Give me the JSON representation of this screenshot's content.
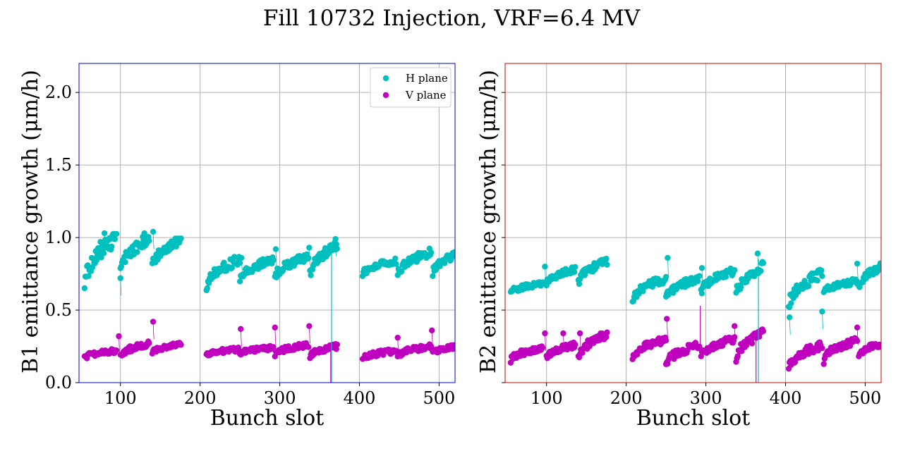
{
  "figure": {
    "title": "Fill 10732 Injection, VRF=6.4 MV"
  },
  "colors": {
    "h_plane": "#00bfbf",
    "v_plane": "#bf00bf",
    "b1_frame": "#0000cc",
    "b2_frame": "#cc0000",
    "grid": "#b0b0b0"
  },
  "chart_data": [
    {
      "type": "scatter",
      "panel": "b1",
      "xlabel": "Bunch slot",
      "ylabel": "B1 emittance growth (μm/h)",
      "xlim": [
        48,
        520
      ],
      "ylim": [
        0.0,
        2.2
      ],
      "xticks": [
        "100",
        "200",
        "300",
        "400",
        "500"
      ],
      "yticks": [
        "0.0",
        "0.5",
        "1.0",
        "1.5",
        "2.0"
      ],
      "grid": true,
      "legend": {
        "placement": "top-right",
        "entries": [
          "H plane",
          "V plane"
        ]
      },
      "series": [
        {
          "name": "H plane",
          "color": "#00bfbf",
          "groups": [
            {
              "x_start": 55,
              "x_end": 95,
              "y_start": 0.66,
              "y_end": 1.0
            },
            {
              "x_start": 100,
              "x_end": 136,
              "y_start": 0.75,
              "y_end": 1.0
            },
            {
              "x_start": 140,
              "x_end": 176,
              "y_start": 0.8,
              "y_end": 0.98
            },
            {
              "x_start": 208,
              "x_end": 250,
              "y_start": 0.65,
              "y_end": 0.85
            },
            {
              "x_start": 250,
              "x_end": 292,
              "y_start": 0.7,
              "y_end": 0.85
            },
            {
              "x_start": 294,
              "x_end": 336,
              "y_start": 0.72,
              "y_end": 0.87
            },
            {
              "x_start": 338,
              "x_end": 372,
              "y_start": 0.74,
              "y_end": 0.95
            },
            {
              "x_start": 404,
              "x_end": 446,
              "y_start": 0.74,
              "y_end": 0.84
            },
            {
              "x_start": 448,
              "x_end": 490,
              "y_start": 0.74,
              "y_end": 0.9
            },
            {
              "x_start": 492,
              "x_end": 520,
              "y_start": 0.75,
              "y_end": 0.88
            }
          ],
          "outliers": [
            {
              "x": 75,
              "y": 0.97
            },
            {
              "x": 80,
              "y": 1.03
            },
            {
              "x": 100,
              "y": 0.72
            },
            {
              "x": 130,
              "y": 1.03
            },
            {
              "x": 141,
              "y": 1.04
            },
            {
              "x": 252,
              "y": 0.86
            },
            {
              "x": 295,
              "y": 0.92
            },
            {
              "x": 337,
              "y": 0.93
            },
            {
              "x": 370,
              "y": 0.99
            }
          ]
        },
        {
          "name": "V plane",
          "color": "#bf00bf",
          "groups": [
            {
              "x_start": 55,
              "x_end": 95,
              "y_start": 0.17,
              "y_end": 0.22
            },
            {
              "x_start": 100,
              "x_end": 136,
              "y_start": 0.18,
              "y_end": 0.27
            },
            {
              "x_start": 140,
              "x_end": 176,
              "y_start": 0.2,
              "y_end": 0.27
            },
            {
              "x_start": 208,
              "x_end": 250,
              "y_start": 0.19,
              "y_end": 0.23
            },
            {
              "x_start": 250,
              "x_end": 292,
              "y_start": 0.2,
              "y_end": 0.24
            },
            {
              "x_start": 294,
              "x_end": 336,
              "y_start": 0.19,
              "y_end": 0.26
            },
            {
              "x_start": 338,
              "x_end": 372,
              "y_start": 0.18,
              "y_end": 0.25
            },
            {
              "x_start": 404,
              "x_end": 446,
              "y_start": 0.16,
              "y_end": 0.22
            },
            {
              "x_start": 448,
              "x_end": 490,
              "y_start": 0.18,
              "y_end": 0.25
            },
            {
              "x_start": 492,
              "x_end": 520,
              "y_start": 0.2,
              "y_end": 0.25
            }
          ],
          "outliers": [
            {
              "x": 98,
              "y": 0.32
            },
            {
              "x": 141,
              "y": 0.42
            },
            {
              "x": 251,
              "y": 0.37
            },
            {
              "x": 294,
              "y": 0.38
            },
            {
              "x": 337,
              "y": 0.39
            },
            {
              "x": 448,
              "y": 0.31
            },
            {
              "x": 491,
              "y": 0.36
            }
          ]
        }
      ],
      "drop_lines": [
        {
          "x": 364,
          "from": 0.25,
          "to": 0.0,
          "color": "#bf00bf"
        },
        {
          "x": 365,
          "from": 0.95,
          "to": 0.0,
          "color": "#00bfbf"
        }
      ]
    },
    {
      "type": "scatter",
      "panel": "b2",
      "xlabel": "Bunch slot",
      "ylabel": "B2 emittance growth (μm/h)",
      "xlim": [
        48,
        520
      ],
      "ylim": [
        0.0,
        2.2
      ],
      "xticks": [
        "100",
        "200",
        "300",
        "400",
        "500"
      ],
      "grid": true,
      "series": [
        {
          "name": "H plane",
          "color": "#00bfbf",
          "groups": [
            {
              "x_start": 55,
              "x_end": 95,
              "y_start": 0.62,
              "y_end": 0.68
            },
            {
              "x_start": 100,
              "x_end": 136,
              "y_start": 0.68,
              "y_end": 0.78
            },
            {
              "x_start": 140,
              "x_end": 176,
              "y_start": 0.68,
              "y_end": 0.84
            },
            {
              "x_start": 208,
              "x_end": 250,
              "y_start": 0.56,
              "y_end": 0.72
            },
            {
              "x_start": 250,
              "x_end": 292,
              "y_start": 0.58,
              "y_end": 0.72
            },
            {
              "x_start": 294,
              "x_end": 336,
              "y_start": 0.62,
              "y_end": 0.77
            },
            {
              "x_start": 338,
              "x_end": 372,
              "y_start": 0.6,
              "y_end": 0.8
            },
            {
              "x_start": 404,
              "x_end": 446,
              "y_start": 0.52,
              "y_end": 0.76
            },
            {
              "x_start": 448,
              "x_end": 490,
              "y_start": 0.62,
              "y_end": 0.7
            },
            {
              "x_start": 492,
              "x_end": 520,
              "y_start": 0.65,
              "y_end": 0.8
            }
          ],
          "outliers": [
            {
              "x": 98,
              "y": 0.8
            },
            {
              "x": 252,
              "y": 0.86
            },
            {
              "x": 295,
              "y": 0.79
            },
            {
              "x": 365,
              "y": 0.89
            },
            {
              "x": 405,
              "y": 0.45
            },
            {
              "x": 446,
              "y": 0.49
            },
            {
              "x": 490,
              "y": 0.82
            }
          ]
        },
        {
          "name": "V plane",
          "color": "#bf00bf",
          "groups": [
            {
              "x_start": 55,
              "x_end": 95,
              "y_start": 0.15,
              "y_end": 0.24
            },
            {
              "x_start": 100,
              "x_end": 136,
              "y_start": 0.17,
              "y_end": 0.26
            },
            {
              "x_start": 140,
              "x_end": 176,
              "y_start": 0.17,
              "y_end": 0.33
            },
            {
              "x_start": 208,
              "x_end": 250,
              "y_start": 0.17,
              "y_end": 0.3
            },
            {
              "x_start": 250,
              "x_end": 292,
              "y_start": 0.12,
              "y_end": 0.26
            },
            {
              "x_start": 294,
              "x_end": 336,
              "y_start": 0.18,
              "y_end": 0.3
            },
            {
              "x_start": 338,
              "x_end": 372,
              "y_start": 0.17,
              "y_end": 0.34
            },
            {
              "x_start": 404,
              "x_end": 446,
              "y_start": 0.1,
              "y_end": 0.26
            },
            {
              "x_start": 448,
              "x_end": 490,
              "y_start": 0.14,
              "y_end": 0.3
            },
            {
              "x_start": 492,
              "x_end": 520,
              "y_start": 0.18,
              "y_end": 0.27
            }
          ],
          "outliers": [
            {
              "x": 98,
              "y": 0.34
            },
            {
              "x": 121,
              "y": 0.34
            },
            {
              "x": 142,
              "y": 0.34
            },
            {
              "x": 251,
              "y": 0.44
            },
            {
              "x": 336,
              "y": 0.39
            },
            {
              "x": 490,
              "y": 0.38
            }
          ]
        }
      ],
      "drop_lines": [
        {
          "x": 293,
          "from": 0.53,
          "to": 0.2,
          "color": "#bf00bf"
        },
        {
          "x": 363,
          "from": 0.34,
          "to": 0.0,
          "color": "#bf00bf"
        },
        {
          "x": 366,
          "from": 0.85,
          "to": 0.0,
          "color": "#00bfbf"
        }
      ]
    }
  ]
}
